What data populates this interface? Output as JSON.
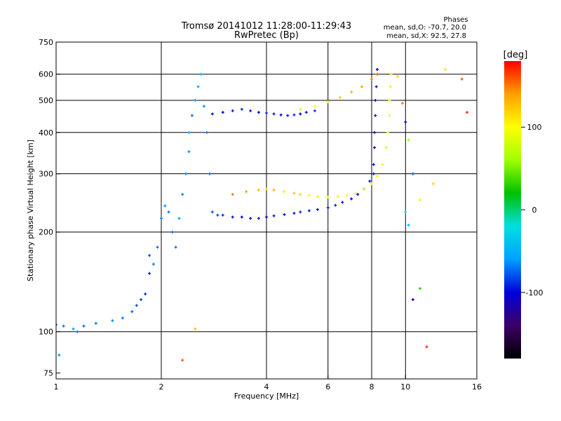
{
  "chart_data": {
    "type": "scatter",
    "title": "Tromsø 20141012 11:28:00-11:29:43",
    "subtitle": "RwPretec (Bp)",
    "xlabel": "Frequency [MHz]",
    "ylabel": "Stationary phase Virtual Height [km]",
    "x_scale": "log",
    "y_scale": "log",
    "xlim": [
      1,
      16
    ],
    "ylim": [
      72,
      750
    ],
    "x_ticks": [
      1,
      2,
      4,
      6,
      8,
      10,
      16
    ],
    "x_tick_labels": [
      "1",
      "2",
      "4",
      "6",
      "8",
      "10",
      "16"
    ],
    "y_ticks": [
      75,
      100,
      200,
      300,
      400,
      500,
      600,
      750
    ],
    "y_tick_labels": [
      "75",
      "100",
      "200",
      "300",
      "400",
      "500",
      "600",
      "750"
    ],
    "gridlines_x": [
      2,
      4,
      6,
      8,
      10
    ],
    "gridlines_y": [
      100,
      200,
      300,
      400,
      500,
      600
    ],
    "grid": true,
    "info": {
      "title": "Phases",
      "line1": "mean, sd,O:  -70.7, 20.0",
      "line2": "mean, sd,X:   92.5, 27.8"
    },
    "colorbar": {
      "label": "[deg]",
      "range": [
        -180,
        180
      ],
      "ticks": [
        100,
        0,
        -100
      ],
      "tick_labels": [
        "100",
        "0",
        "-100"
      ],
      "colormap": [
        "#000000",
        "#3c0066",
        "#0000dc",
        "#00a0ff",
        "#00e0e0",
        "#00c000",
        "#a0ff00",
        "#ffff00",
        "#ffa000",
        "#ff0000"
      ]
    },
    "series": [
      {
        "x": [
          1.0,
          1.05,
          1.12,
          1.2,
          1.3,
          1.45,
          1.55,
          1.65,
          1.7,
          1.75,
          1.8,
          1.85,
          1.85,
          1.9,
          1.95,
          2.0,
          2.05,
          2.1,
          2.15,
          2.2,
          2.25,
          2.3,
          2.35,
          2.4,
          2.4,
          2.45,
          2.5,
          2.55,
          2.6,
          2.65,
          2.7,
          2.75
        ],
        "y": [
          105,
          104,
          102,
          104,
          106,
          108,
          110,
          115,
          120,
          125,
          130,
          150,
          170,
          160,
          180,
          220,
          240,
          230,
          200,
          180,
          220,
          260,
          300,
          350,
          400,
          450,
          500,
          550,
          600,
          480,
          400,
          300
        ],
        "phase": [
          -80,
          -70,
          -60,
          -75,
          -70,
          -65,
          -70,
          -75,
          -80,
          -85,
          -90,
          -95,
          -80,
          -70,
          -75,
          -70,
          -65,
          -70,
          -75,
          -70,
          -60,
          -65,
          -70,
          -65,
          -60,
          -70,
          -65,
          -60,
          -55,
          -65,
          -70,
          -75
        ]
      },
      {
        "x": [
          2.8,
          2.9,
          3.0,
          3.2,
          3.4,
          3.6,
          3.8,
          4.0,
          4.2,
          4.5,
          4.8,
          5.0,
          5.3,
          5.6,
          6.0,
          6.3,
          6.6,
          7.0,
          7.3,
          7.6,
          7.9,
          8.1
        ],
        "y": [
          230,
          225,
          225,
          222,
          222,
          220,
          220,
          222,
          224,
          226,
          228,
          230,
          232,
          234,
          237,
          241,
          246,
          252,
          260,
          270,
          285,
          300
        ],
        "phase": [
          -80,
          -85,
          -90,
          -95,
          -100,
          -100,
          -95,
          -100,
          -95,
          -100,
          -95,
          -90,
          -95,
          -100,
          -95,
          -90,
          -95,
          -100,
          -95,
          -90,
          -95,
          -100
        ]
      },
      {
        "x": [
          8.1,
          8.15,
          8.15,
          8.2,
          8.2,
          8.25,
          8.3
        ],
        "y": [
          320,
          360,
          400,
          450,
          500,
          550,
          620
        ],
        "phase": [
          -100,
          -105,
          -100,
          -95,
          -100,
          -105,
          -110
        ]
      },
      {
        "x": [
          2.8,
          3.0,
          3.2,
          3.4,
          3.6,
          3.8,
          4.0,
          4.2,
          4.4,
          4.6,
          4.8,
          5.0,
          5.2,
          5.5
        ],
        "y": [
          455,
          460,
          465,
          470,
          465,
          460,
          458,
          455,
          452,
          450,
          452,
          455,
          460,
          465
        ],
        "phase": [
          -95,
          -100,
          -95,
          -90,
          -95,
          -100,
          -90,
          -95,
          -100,
          -95,
          -90,
          -100,
          -95,
          -90
        ]
      },
      {
        "x": [
          3.2,
          3.5,
          3.8,
          4.0,
          4.2,
          4.5,
          4.8,
          5.0,
          5.3,
          5.6,
          6.0,
          6.4,
          6.8,
          7.2,
          7.6,
          8.0,
          8.3,
          8.6,
          8.8,
          8.9,
          9.0,
          9.0,
          9.05,
          9.1
        ],
        "y": [
          260,
          265,
          268,
          270,
          268,
          265,
          262,
          260,
          258,
          256,
          255,
          256,
          258,
          262,
          270,
          280,
          295,
          320,
          360,
          400,
          450,
          500,
          550,
          600
        ],
        "phase": [
          150,
          140,
          130,
          120,
          135,
          110,
          125,
          115,
          100,
          105,
          95,
          90,
          100,
          95,
          85,
          95,
          100,
          90,
          80,
          95,
          100,
          90,
          85,
          80
        ]
      },
      {
        "x": [
          5.0,
          5.5,
          6.0,
          6.5,
          7.0,
          7.5,
          8.0,
          8.3
        ],
        "y": [
          470,
          480,
          495,
          510,
          530,
          550,
          580,
          600
        ],
        "phase": [
          90,
          100,
          110,
          120,
          130,
          140,
          150,
          160
        ]
      },
      {
        "x": [
          9.5,
          9.8,
          10.0,
          10.2,
          10.5,
          11.0,
          11.5,
          12.0,
          13.0,
          14.5,
          15.0
        ],
        "y": [
          590,
          490,
          430,
          380,
          300,
          250,
          90,
          280,
          620,
          580,
          460
        ],
        "phase": [
          120,
          150,
          -100,
          60,
          -80,
          100,
          170,
          120,
          110,
          160,
          170
        ]
      },
      {
        "x": [
          10.0,
          10.2,
          10.5,
          11.0
        ],
        "y": [
          230,
          210,
          125,
          135
        ],
        "phase": [
          -30,
          -40,
          -100,
          30
        ]
      },
      {
        "x": [
          1.02,
          1.15,
          2.3,
          2.5
        ],
        "y": [
          85,
          100,
          82,
          102
        ],
        "phase": [
          -60,
          -70,
          160,
          130
        ]
      }
    ]
  }
}
